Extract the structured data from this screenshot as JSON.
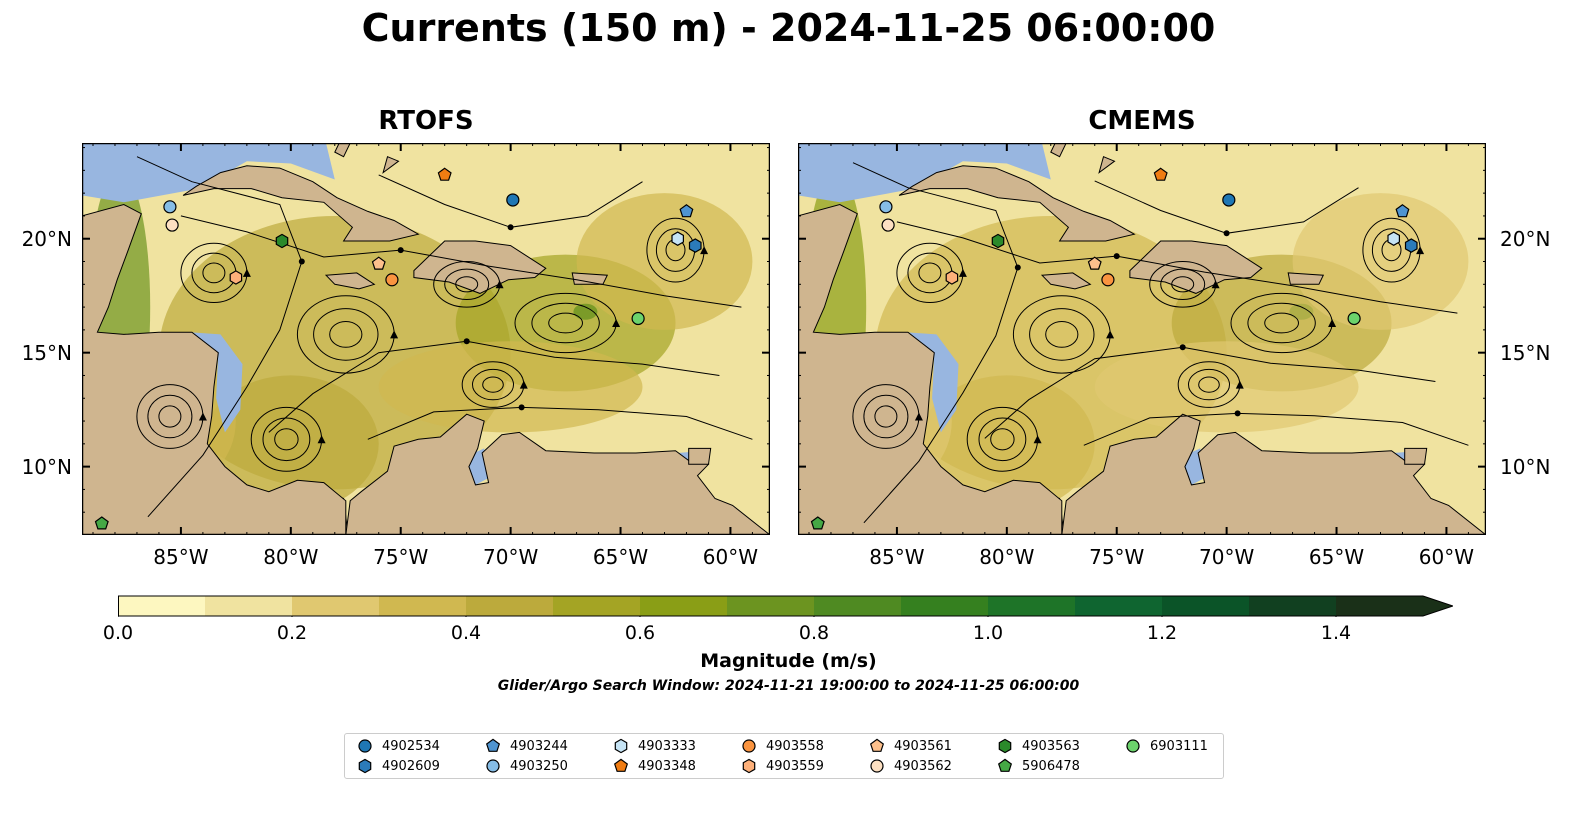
{
  "title": "Currents (150 m) - 2024-11-25 06:00:00",
  "panels": [
    {
      "title": "RTOFS"
    },
    {
      "title": "CMEMS"
    }
  ],
  "axes": {
    "lon_labels": [
      "85°W",
      "80°W",
      "75°W",
      "70°W",
      "65°W",
      "60°W"
    ],
    "lon_values": [
      -85,
      -80,
      -75,
      -70,
      -65,
      -60
    ],
    "lat_labels": [
      "20°N",
      "15°N",
      "10°N"
    ],
    "lat_values": [
      20,
      15,
      10
    ],
    "lon_range": [
      -89.5,
      -58.2
    ],
    "lat_range": [
      7.0,
      24.2
    ]
  },
  "colorbar": {
    "label": "Magnitude (m/s)",
    "range": [
      0.0,
      1.5
    ],
    "extend": "max",
    "tick_labels": [
      "0.0",
      "0.2",
      "0.4",
      "0.6",
      "0.8",
      "1.0",
      "1.2",
      "1.4"
    ],
    "tick_values": [
      0.0,
      0.2,
      0.4,
      0.6,
      0.8,
      1.0,
      1.2,
      1.4
    ],
    "colors": [
      "#fdf7c0",
      "#f0e3a0",
      "#e0c870",
      "#d0b850",
      "#bcaa3c",
      "#a4a424",
      "#8a9e16",
      "#6c9420",
      "#4f8a22",
      "#35801f",
      "#1e7428",
      "#0f6530",
      "#0b5428",
      "#114020",
      "#1a3018"
    ]
  },
  "search_window": "Glider/Argo Search Window: 2024-11-21 19:00:00 to 2024-11-25 06:00:00",
  "map_colors": {
    "land": "#cfb58f",
    "water": "#98b6e0",
    "coast": "#000000",
    "stream": "#000000"
  },
  "floats": [
    {
      "id": "4902534",
      "marker": "circle",
      "color": "#1f77b4",
      "lon": -69.9,
      "lat": 21.7
    },
    {
      "id": "4902609",
      "marker": "hexagon",
      "color": "#2b7bba",
      "lon": -61.6,
      "lat": 19.7
    },
    {
      "id": "4903244",
      "marker": "pentagon",
      "color": "#4f94d0",
      "lon": -62.0,
      "lat": 21.2
    },
    {
      "id": "4903250",
      "marker": "circle",
      "color": "#86bde6",
      "lon": -85.5,
      "lat": 21.4
    },
    {
      "id": "4903333",
      "marker": "hexagon",
      "color": "#c6e4f5",
      "lon": -62.4,
      "lat": 20.0
    },
    {
      "id": "4903348",
      "marker": "pentagon",
      "color": "#f07c12",
      "lon": -73.0,
      "lat": 22.8
    },
    {
      "id": "4903558",
      "marker": "circle",
      "color": "#fa9440",
      "lon": -75.4,
      "lat": 18.2
    },
    {
      "id": "4903559",
      "marker": "hexagon",
      "color": "#fdb07a",
      "lon": -82.5,
      "lat": 18.3
    },
    {
      "id": "4903561",
      "marker": "pentagon",
      "color": "#fdc08c",
      "lon": -76.0,
      "lat": 18.9
    },
    {
      "id": "4903562",
      "marker": "circle",
      "color": "#fde0c2",
      "lon": -85.4,
      "lat": 20.6
    },
    {
      "id": "4903563",
      "marker": "hexagon",
      "color": "#2b8a2b",
      "lon": -80.4,
      "lat": 19.9
    },
    {
      "id": "5906478",
      "marker": "pentagon",
      "color": "#45a845",
      "lon": -88.6,
      "lat": 7.5
    },
    {
      "id": "6903111",
      "marker": "circle",
      "color": "#6cd36c",
      "lon": -64.2,
      "lat": 16.5
    }
  ],
  "legend_columns": 7
}
